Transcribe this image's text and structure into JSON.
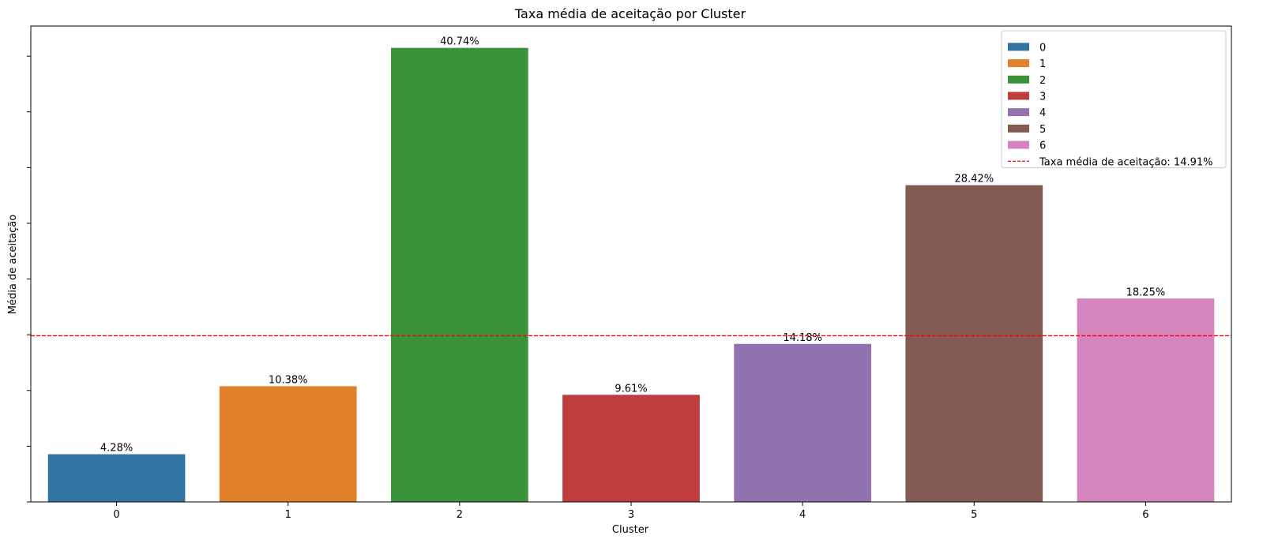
{
  "chart_data": {
    "type": "bar",
    "title": "Taxa média de aceitação por Cluster",
    "xlabel": "Cluster",
    "ylabel": "Média de aceitação",
    "categories": [
      "0",
      "1",
      "2",
      "3",
      "4",
      "5",
      "6"
    ],
    "values": [
      4.28,
      10.38,
      40.74,
      9.61,
      14.18,
      28.42,
      18.25
    ],
    "value_labels": [
      "4.28%",
      "10.38%",
      "40.74%",
      "9.61%",
      "14.18%",
      "28.42%",
      "18.25%"
    ],
    "colors": [
      "#3274a1",
      "#e1812c",
      "#3a923a",
      "#c03d3e",
      "#9372b2",
      "#845b53",
      "#d684bd"
    ],
    "ylim": [
      0,
      42.7
    ],
    "yticks": [
      0,
      5,
      10,
      15,
      20,
      25,
      30,
      35,
      40
    ],
    "ytick_labels_visible": false,
    "grid": false,
    "reference_line": {
      "value": 14.91,
      "label": "Taxa média de aceitação: 14.91%",
      "color": "#ff0000",
      "style": "dashed"
    },
    "legend": {
      "placement": "top-right",
      "entries": [
        "0",
        "1",
        "2",
        "3",
        "4",
        "5",
        "6"
      ]
    }
  }
}
